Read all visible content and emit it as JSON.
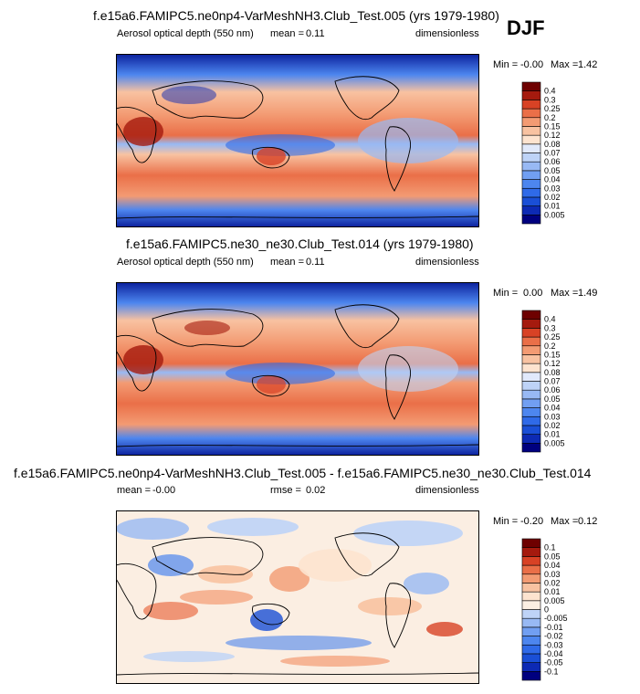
{
  "season": "DJF",
  "chart_data": [
    {
      "type": "heatmap",
      "title": "f.e15a6.FAMIPC5.ne0np4-VarMeshNH3.Club_Test.005 (yrs 1979-1980)",
      "variable": "Aerosol optical depth (550 nm)",
      "mean_label": "mean =",
      "mean_value": "0.11",
      "units": "dimensionless",
      "min_label": "Min =",
      "min_value": "-0.00",
      "max_label": "Max =",
      "max_value": "1.42",
      "levels": [
        "0.005",
        "0.01",
        "0.02",
        "0.03",
        "0.04",
        "0.05",
        "0.06",
        "0.07",
        "0.08",
        "0.12",
        "0.15",
        "0.2",
        "0.25",
        "0.3",
        "0.4"
      ],
      "colors": [
        "#00007f",
        "#0d2ab4",
        "#1a4fd6",
        "#2f6ae8",
        "#4d86ef",
        "#719ff2",
        "#98b9f4",
        "#bed3f7",
        "#e1e9fb",
        "#fde3cf",
        "#f8c2a1",
        "#f39b73",
        "#ea6f48",
        "#d84225",
        "#a51a0e",
        "#6e0000"
      ]
    },
    {
      "type": "heatmap",
      "title": "f.e15a6.FAMIPC5.ne30_ne30.Club_Test.014 (yrs 1979-1980)",
      "variable": "Aerosol optical depth (550 nm)",
      "mean_label": "mean =",
      "mean_value": "0.11",
      "units": "dimensionless",
      "min_label": "Min =",
      "min_value": "0.00",
      "max_label": "Max =",
      "max_value": "1.49",
      "levels": [
        "0.005",
        "0.01",
        "0.02",
        "0.03",
        "0.04",
        "0.05",
        "0.06",
        "0.07",
        "0.08",
        "0.12",
        "0.15",
        "0.2",
        "0.25",
        "0.3",
        "0.4"
      ],
      "colors": [
        "#00007f",
        "#0d2ab4",
        "#1a4fd6",
        "#2f6ae8",
        "#4d86ef",
        "#719ff2",
        "#98b9f4",
        "#bed3f7",
        "#e1e9fb",
        "#fde3cf",
        "#f8c2a1",
        "#f39b73",
        "#ea6f48",
        "#d84225",
        "#a51a0e",
        "#6e0000"
      ]
    },
    {
      "type": "heatmap",
      "title": "f.e15a6.FAMIPC5.ne0np4-VarMeshNH3.Club_Test.005 - f.e15a6.FAMIPC5.ne30_ne30.Club_Test.014",
      "mean_label": "mean =",
      "mean_value": "-0.00",
      "rmse_label": "rmse =",
      "rmse_value": "0.02",
      "units": "dimensionless",
      "min_label": "Min =",
      "min_value": "-0.20",
      "max_label": "Max =",
      "max_value": "0.12",
      "levels": [
        "-0.1",
        "-0.05",
        "-0.04",
        "-0.03",
        "-0.02",
        "-0.01",
        "-0.005",
        "0",
        "0.005",
        "0.01",
        "0.02",
        "0.03",
        "0.04",
        "0.05",
        "0.1"
      ],
      "colors": [
        "#00007f",
        "#0d2ab4",
        "#1a4fd6",
        "#2f6ae8",
        "#4d86ef",
        "#719ff2",
        "#98b9f4",
        "#bed3f7",
        "#fbeee2",
        "#fde3cf",
        "#f8c2a1",
        "#f39b73",
        "#ea6f48",
        "#d84225",
        "#a51a0e",
        "#6e0000"
      ]
    }
  ]
}
